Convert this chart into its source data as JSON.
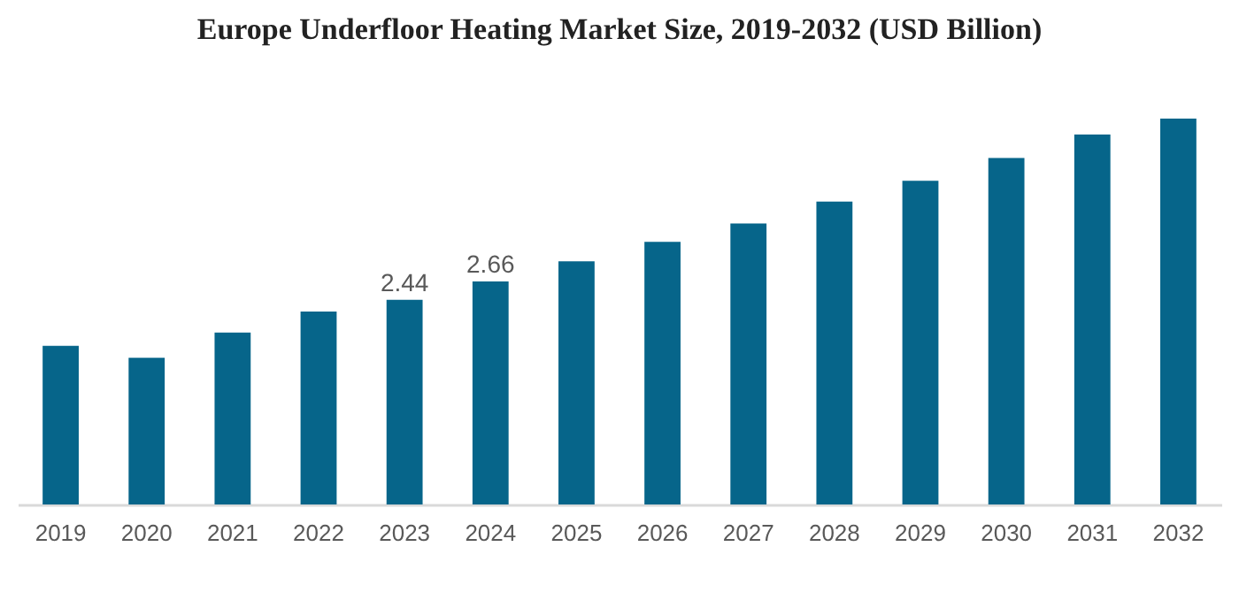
{
  "chart_data": {
    "type": "bar",
    "title": "Europe Underfloor Heating Market Size, 2019-2032 (USD Billion)",
    "categories": [
      "2019",
      "2020",
      "2021",
      "2022",
      "2023",
      "2024",
      "2025",
      "2026",
      "2027",
      "2028",
      "2029",
      "2030",
      "2031",
      "2032"
    ],
    "values": [
      1.89,
      1.75,
      2.05,
      2.3,
      2.44,
      2.66,
      2.9,
      3.13,
      3.35,
      3.61,
      3.86,
      4.13,
      4.41,
      4.6
    ],
    "value_labels": [
      null,
      null,
      null,
      null,
      "2.44",
      "2.66",
      null,
      null,
      null,
      null,
      null,
      null,
      null,
      null
    ],
    "color": "#06658a",
    "tick_labels": "x",
    "grid": false
  }
}
